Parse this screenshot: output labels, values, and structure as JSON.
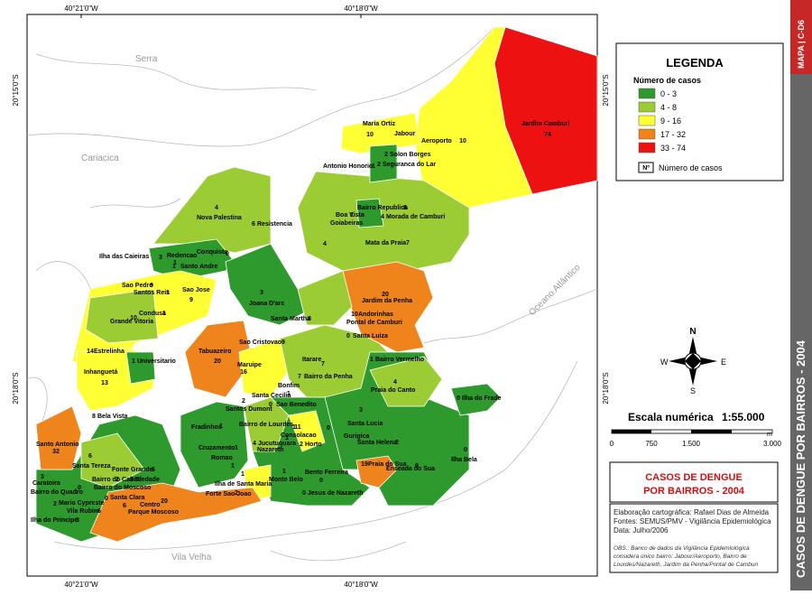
{
  "map": {
    "coordinates": {
      "lon": [
        "40°21'0\"W",
        "40°18'0\"W"
      ],
      "lat": [
        "20°15'0\"S",
        "20°18'0\"S"
      ]
    },
    "places": [
      "Serra",
      "Cariacica",
      "Vila Velha",
      "Oceano Atlântico"
    ],
    "neighborhoods": [
      {
        "name": "Maria Ortiz",
        "cases": 10
      },
      {
        "name": "Jabour"
      },
      {
        "name": "Aeroporto",
        "cases": 10
      },
      {
        "name": "Jardim Camburi",
        "cases": 74
      },
      {
        "name": "Solon Borges",
        "cases": 2
      },
      {
        "name": "Antonio Honorio",
        "cases": 1
      },
      {
        "name": "Seguranca do Lar",
        "cases": 2
      },
      {
        "name": "Nova Palestina",
        "cases": 4
      },
      {
        "name": "Resistencia",
        "cases": 6
      },
      {
        "name": "Bairro Republica",
        "cases": 8
      },
      {
        "name": "Boa Vista",
        "cases": 1
      },
      {
        "name": "Morada de Camburi",
        "cases": 4
      },
      {
        "name": "Goiabeiras",
        "cases": 4
      },
      {
        "name": "Mata da Praia",
        "cases": 7
      },
      {
        "name": "Ilha das Caieiras",
        "cases": 3
      },
      {
        "name": "Redencao",
        "cases": 1
      },
      {
        "name": "Conquista",
        "cases": 0
      },
      {
        "name": "Santo Andre",
        "cases": 1
      },
      {
        "name": "Sao Pedro",
        "cases": 9
      },
      {
        "name": "Santos Reis",
        "cases": 1
      },
      {
        "name": "Sao Jose",
        "cases": 9
      },
      {
        "name": "Joana D'arc",
        "cases": 3
      },
      {
        "name": "Jardim da Penha",
        "cases": 20
      },
      {
        "name": "Condusa",
        "cases": 1
      },
      {
        "name": "Grande Vitoria",
        "cases": 10
      },
      {
        "name": "Santa Martha",
        "cases": 8
      },
      {
        "name": "Andorinhas",
        "cases": 10
      },
      {
        "name": "Pontal de Camburi"
      },
      {
        "name": "Santa Luiza",
        "cases": 0
      },
      {
        "name": "Tabuazeiro",
        "cases": 20
      },
      {
        "name": "Sao Cristovao",
        "cases": 9
      },
      {
        "name": "Estrelinha",
        "cases": 14
      },
      {
        "name": "Universitario",
        "cases": 1
      },
      {
        "name": "Maruipe",
        "cases": 16
      },
      {
        "name": "Itarare",
        "cases": 7
      },
      {
        "name": "Bairro Vermelho",
        "cases": 1
      },
      {
        "name": "Inhanguetá",
        "cases": 13
      },
      {
        "name": "Bonfim"
      },
      {
        "name": "Bairro da Penha",
        "cases": 7
      },
      {
        "name": "Praia do Canto",
        "cases": 4
      },
      {
        "name": "Ilha do Frade",
        "cases": 0
      },
      {
        "name": "Santa Cecilia",
        "cases": 1
      },
      {
        "name": "Sao Benedito",
        "cases": 0
      },
      {
        "name": "Bela Vista",
        "cases": 8
      },
      {
        "name": "Santos Dumont",
        "cases": 2
      },
      {
        "name": "Fradinhos",
        "cases": 1
      },
      {
        "name": "Bairro de Lourdes",
        "cases": 1
      },
      {
        "name": "Consolacao",
        "cases": 11
      },
      {
        "name": "Santa Lucia",
        "cases": 3
      },
      {
        "name": "Gurigica",
        "cases": 0
      },
      {
        "name": "Horto",
        "cases": 2
      },
      {
        "name": "Jucutuquara",
        "cases": 4
      },
      {
        "name": "Nazareth",
        "cases": 1
      },
      {
        "name": "Santo Antonio",
        "cases": 32
      },
      {
        "name": "Cruzamento",
        "cases": 1
      },
      {
        "name": "Romao",
        "cases": 1
      },
      {
        "name": "Santa Helena",
        "cases": 2
      },
      {
        "name": "Ilha Bela",
        "cases": 0
      },
      {
        "name": "Santa Tereza",
        "cases": 6
      },
      {
        "name": "Monte Belo",
        "cases": 1
      },
      {
        "name": "Bento Ferreira",
        "cases": 0
      },
      {
        "name": "Praia do Sua",
        "cases": 19
      },
      {
        "name": "Enseada do Sua",
        "cases": 0
      },
      {
        "name": "Ilha de Santa Maria",
        "cases": 1
      },
      {
        "name": "Caratoira",
        "cases": 3
      },
      {
        "name": "Bairro do Quadro",
        "cases": 1
      },
      {
        "name": "Fonte Grande",
        "cases": 6
      },
      {
        "name": "Bairro do Cabral",
        "cases": 2
      },
      {
        "name": "Bairro do Moscoso",
        "cases": 0
      },
      {
        "name": "Piedade",
        "cases": 4
      },
      {
        "name": "Jesus de Nazareth",
        "cases": 0
      },
      {
        "name": "Forte Sao Joao",
        "cases": 2
      },
      {
        "name": "Mario Cypreste",
        "cases": 2
      },
      {
        "name": "Vila Rubim",
        "cases": 6
      },
      {
        "name": "Santa Clara",
        "cases": 0
      },
      {
        "name": "Centro",
        "cases": 20
      },
      {
        "name": "Parque Moscoso",
        "cases": 6
      },
      {
        "name": "Ilha do Principe",
        "cases": 3
      }
    ]
  },
  "legend": {
    "title": "LEGENDA",
    "subtitle": "Número de casos",
    "classes": [
      {
        "label": "0 - 3",
        "color": "#2e9a2e"
      },
      {
        "label": "4 - 8",
        "color": "#9ccc34"
      },
      {
        "label": "9 - 16",
        "color": "#ffff33"
      },
      {
        "label": "17 - 32",
        "color": "#f0841c"
      },
      {
        "label": "33 - 74",
        "color": "#ee1111"
      }
    ],
    "symbol": "Nº",
    "symbol_label": "Número de casos"
  },
  "compass": [
    "N",
    "S",
    "E",
    "W"
  ],
  "scale": {
    "title": "Escala numérica",
    "ratio": "1:55.000",
    "ticks": [
      "0",
      "750",
      "1.500",
      "3.000"
    ],
    "unit": "m"
  },
  "title_box": {
    "lines": [
      "CASOS DE DENGUE",
      "POR BAIRROS - 2004"
    ]
  },
  "credits": [
    "Elaboração cartográfica: Rafael Dias de Almeida",
    "Fontes: SEMUS/PMV - Vigilância Epidemiológica",
    "Data: Julho/2006"
  ],
  "obs": [
    "OBS.: Banco de dados da Vigilância Epidemiológica",
    "considera único bairro: Jabour/Aeroporto, Bairro de",
    "Lourdes/Nazareth, Jardim da Penha/Pontal de Camburi"
  ],
  "sidebar": {
    "title": "CASOS DE DENGUE POR BAIRROS - 2004",
    "code": "MAPA | C-D6"
  }
}
